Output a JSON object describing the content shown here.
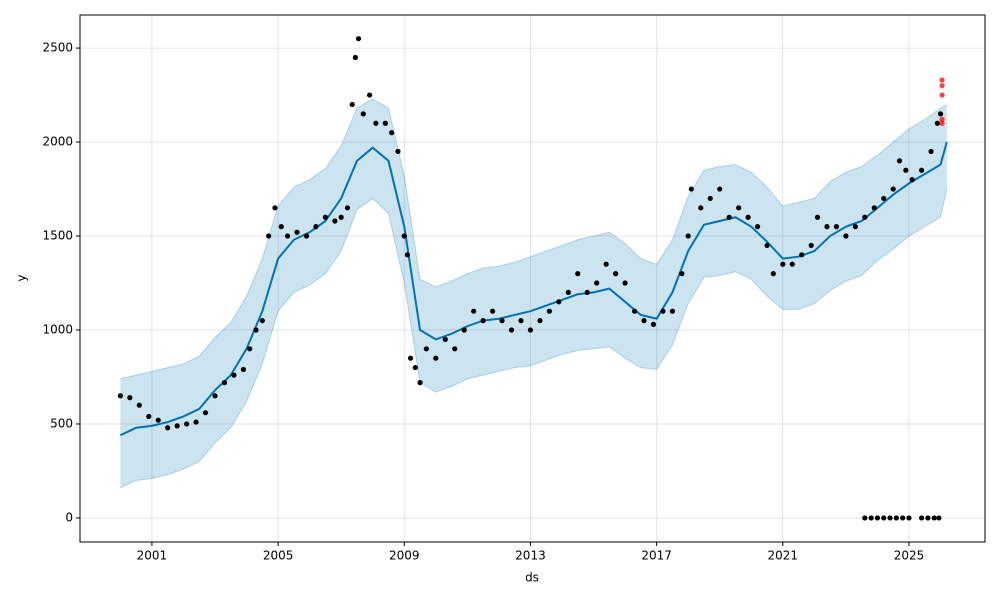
{
  "chart_data": {
    "type": "line",
    "xlabel": "ds",
    "ylabel": "y",
    "xlim": [
      1998.72,
      2027.41
    ],
    "ylim": [
      -128,
      2676
    ],
    "xticks": [
      2001,
      2005,
      2009,
      2013,
      2017,
      2021,
      2025
    ],
    "yticks": [
      0,
      500,
      1000,
      1500,
      2000,
      2500
    ],
    "grid": true,
    "forecast": {
      "color": "#0072B2",
      "x": [
        2000.0,
        2000.5,
        2001.0,
        2001.5,
        2002.0,
        2002.5,
        2003.0,
        2003.5,
        2004.0,
        2004.5,
        2005.0,
        2005.5,
        2006.0,
        2006.5,
        2007.0,
        2007.5,
        2008.0,
        2008.5,
        2009.0,
        2009.5,
        2010.0,
        2010.5,
        2011.0,
        2011.5,
        2012.0,
        2012.5,
        2013.0,
        2013.5,
        2014.0,
        2014.5,
        2015.0,
        2015.5,
        2016.0,
        2016.5,
        2017.0,
        2017.5,
        2018.0,
        2018.5,
        2019.0,
        2019.5,
        2020.0,
        2020.5,
        2021.0,
        2021.5,
        2022.0,
        2022.5,
        2023.0,
        2023.5,
        2024.0,
        2024.5,
        2025.0,
        2025.5,
        2026.0,
        2026.2
      ],
      "values": [
        440,
        480,
        490,
        510,
        540,
        580,
        680,
        760,
        900,
        1100,
        1380,
        1480,
        1520,
        1580,
        1700,
        1900,
        1970,
        1900,
        1550,
        1000,
        950,
        980,
        1020,
        1050,
        1060,
        1080,
        1100,
        1130,
        1160,
        1190,
        1200,
        1220,
        1150,
        1080,
        1060,
        1200,
        1420,
        1560,
        1580,
        1600,
        1550,
        1470,
        1380,
        1390,
        1420,
        1500,
        1550,
        1580,
        1650,
        1720,
        1780,
        1830,
        1880,
        2000
      ],
      "lower": [
        160,
        200,
        210,
        230,
        260,
        300,
        400,
        480,
        620,
        820,
        1100,
        1200,
        1240,
        1300,
        1420,
        1640,
        1700,
        1620,
        1250,
        720,
        670,
        700,
        740,
        760,
        780,
        800,
        810,
        840,
        870,
        890,
        900,
        910,
        850,
        800,
        790,
        920,
        1140,
        1280,
        1290,
        1310,
        1270,
        1180,
        1110,
        1110,
        1140,
        1210,
        1260,
        1290,
        1370,
        1430,
        1500,
        1550,
        1600,
        1750
      ],
      "upper": [
        740,
        760,
        780,
        800,
        820,
        860,
        960,
        1040,
        1180,
        1380,
        1660,
        1760,
        1800,
        1860,
        1980,
        2180,
        2230,
        2180,
        1820,
        1270,
        1230,
        1260,
        1300,
        1330,
        1340,
        1360,
        1390,
        1420,
        1450,
        1480,
        1500,
        1520,
        1460,
        1380,
        1350,
        1480,
        1710,
        1850,
        1870,
        1880,
        1840,
        1760,
        1660,
        1680,
        1700,
        1790,
        1840,
        1870,
        1930,
        2000,
        2070,
        2120,
        2180,
        2200
      ]
    },
    "points": {
      "color": "#000000",
      "x": [
        2000.0,
        2000.3,
        2000.6,
        2000.9,
        2001.2,
        2001.5,
        2001.8,
        2002.1,
        2002.4,
        2002.7,
        2003.0,
        2003.3,
        2003.6,
        2003.9,
        2004.1,
        2004.3,
        2004.5,
        2004.7,
        2004.9,
        2005.1,
        2005.3,
        2005.6,
        2005.9,
        2006.2,
        2006.5,
        2006.8,
        2007.0,
        2007.2,
        2007.35,
        2007.45,
        2007.55,
        2007.7,
        2007.9,
        2008.1,
        2008.4,
        2008.6,
        2008.8,
        2009.0,
        2009.1,
        2009.2,
        2009.35,
        2009.5,
        2009.7,
        2010.0,
        2010.3,
        2010.6,
        2010.9,
        2011.2,
        2011.5,
        2011.8,
        2012.1,
        2012.4,
        2012.7,
        2013.0,
        2013.3,
        2013.6,
        2013.9,
        2014.2,
        2014.5,
        2014.8,
        2015.1,
        2015.4,
        2015.7,
        2016.0,
        2016.3,
        2016.6,
        2016.9,
        2017.2,
        2017.5,
        2017.8,
        2018.0,
        2018.1,
        2018.4,
        2018.7,
        2019.0,
        2019.3,
        2019.6,
        2019.9,
        2020.2,
        2020.5,
        2020.7,
        2021.0,
        2021.3,
        2021.6,
        2021.9,
        2022.1,
        2022.4,
        2022.7,
        2023.0,
        2023.3,
        2023.6,
        2023.9,
        2024.2,
        2024.5,
        2024.7,
        2024.9,
        2025.1,
        2025.4,
        2025.7,
        2025.9,
        2026.0,
        2023.6,
        2023.8,
        2024.0,
        2024.2,
        2024.4,
        2024.6,
        2024.8,
        2025.0,
        2025.4,
        2025.6,
        2025.8,
        2025.95
      ],
      "values": [
        650,
        640,
        600,
        540,
        520,
        480,
        490,
        500,
        510,
        560,
        650,
        720,
        760,
        790,
        900,
        1000,
        1050,
        1500,
        1650,
        1550,
        1500,
        1520,
        1500,
        1550,
        1600,
        1580,
        1600,
        1650,
        2200,
        2450,
        2550,
        2150,
        2250,
        2100,
        2100,
        2050,
        1950,
        1500,
        1400,
        850,
        800,
        720,
        900,
        850,
        950,
        900,
        1000,
        1100,
        1050,
        1100,
        1050,
        1000,
        1050,
        1000,
        1050,
        1100,
        1150,
        1200,
        1300,
        1200,
        1250,
        1350,
        1300,
        1250,
        1100,
        1050,
        1030,
        1100,
        1100,
        1300,
        1500,
        1750,
        1650,
        1700,
        1750,
        1600,
        1650,
        1600,
        1550,
        1450,
        1300,
        1350,
        1350,
        1400,
        1450,
        1600,
        1550,
        1550,
        1500,
        1550,
        1600,
        1650,
        1700,
        1750,
        1900,
        1850,
        1800,
        1850,
        1950,
        2100,
        2150,
        0,
        0,
        0,
        0,
        0,
        0,
        0,
        0,
        0,
        0,
        0,
        0
      ]
    },
    "anomalies": {
      "color": "#ff0000",
      "x": [
        2026.05,
        2026.05,
        2026.05,
        2026.05,
        2026.05
      ],
      "values": [
        2330,
        2300,
        2250,
        2120,
        2100
      ]
    }
  }
}
